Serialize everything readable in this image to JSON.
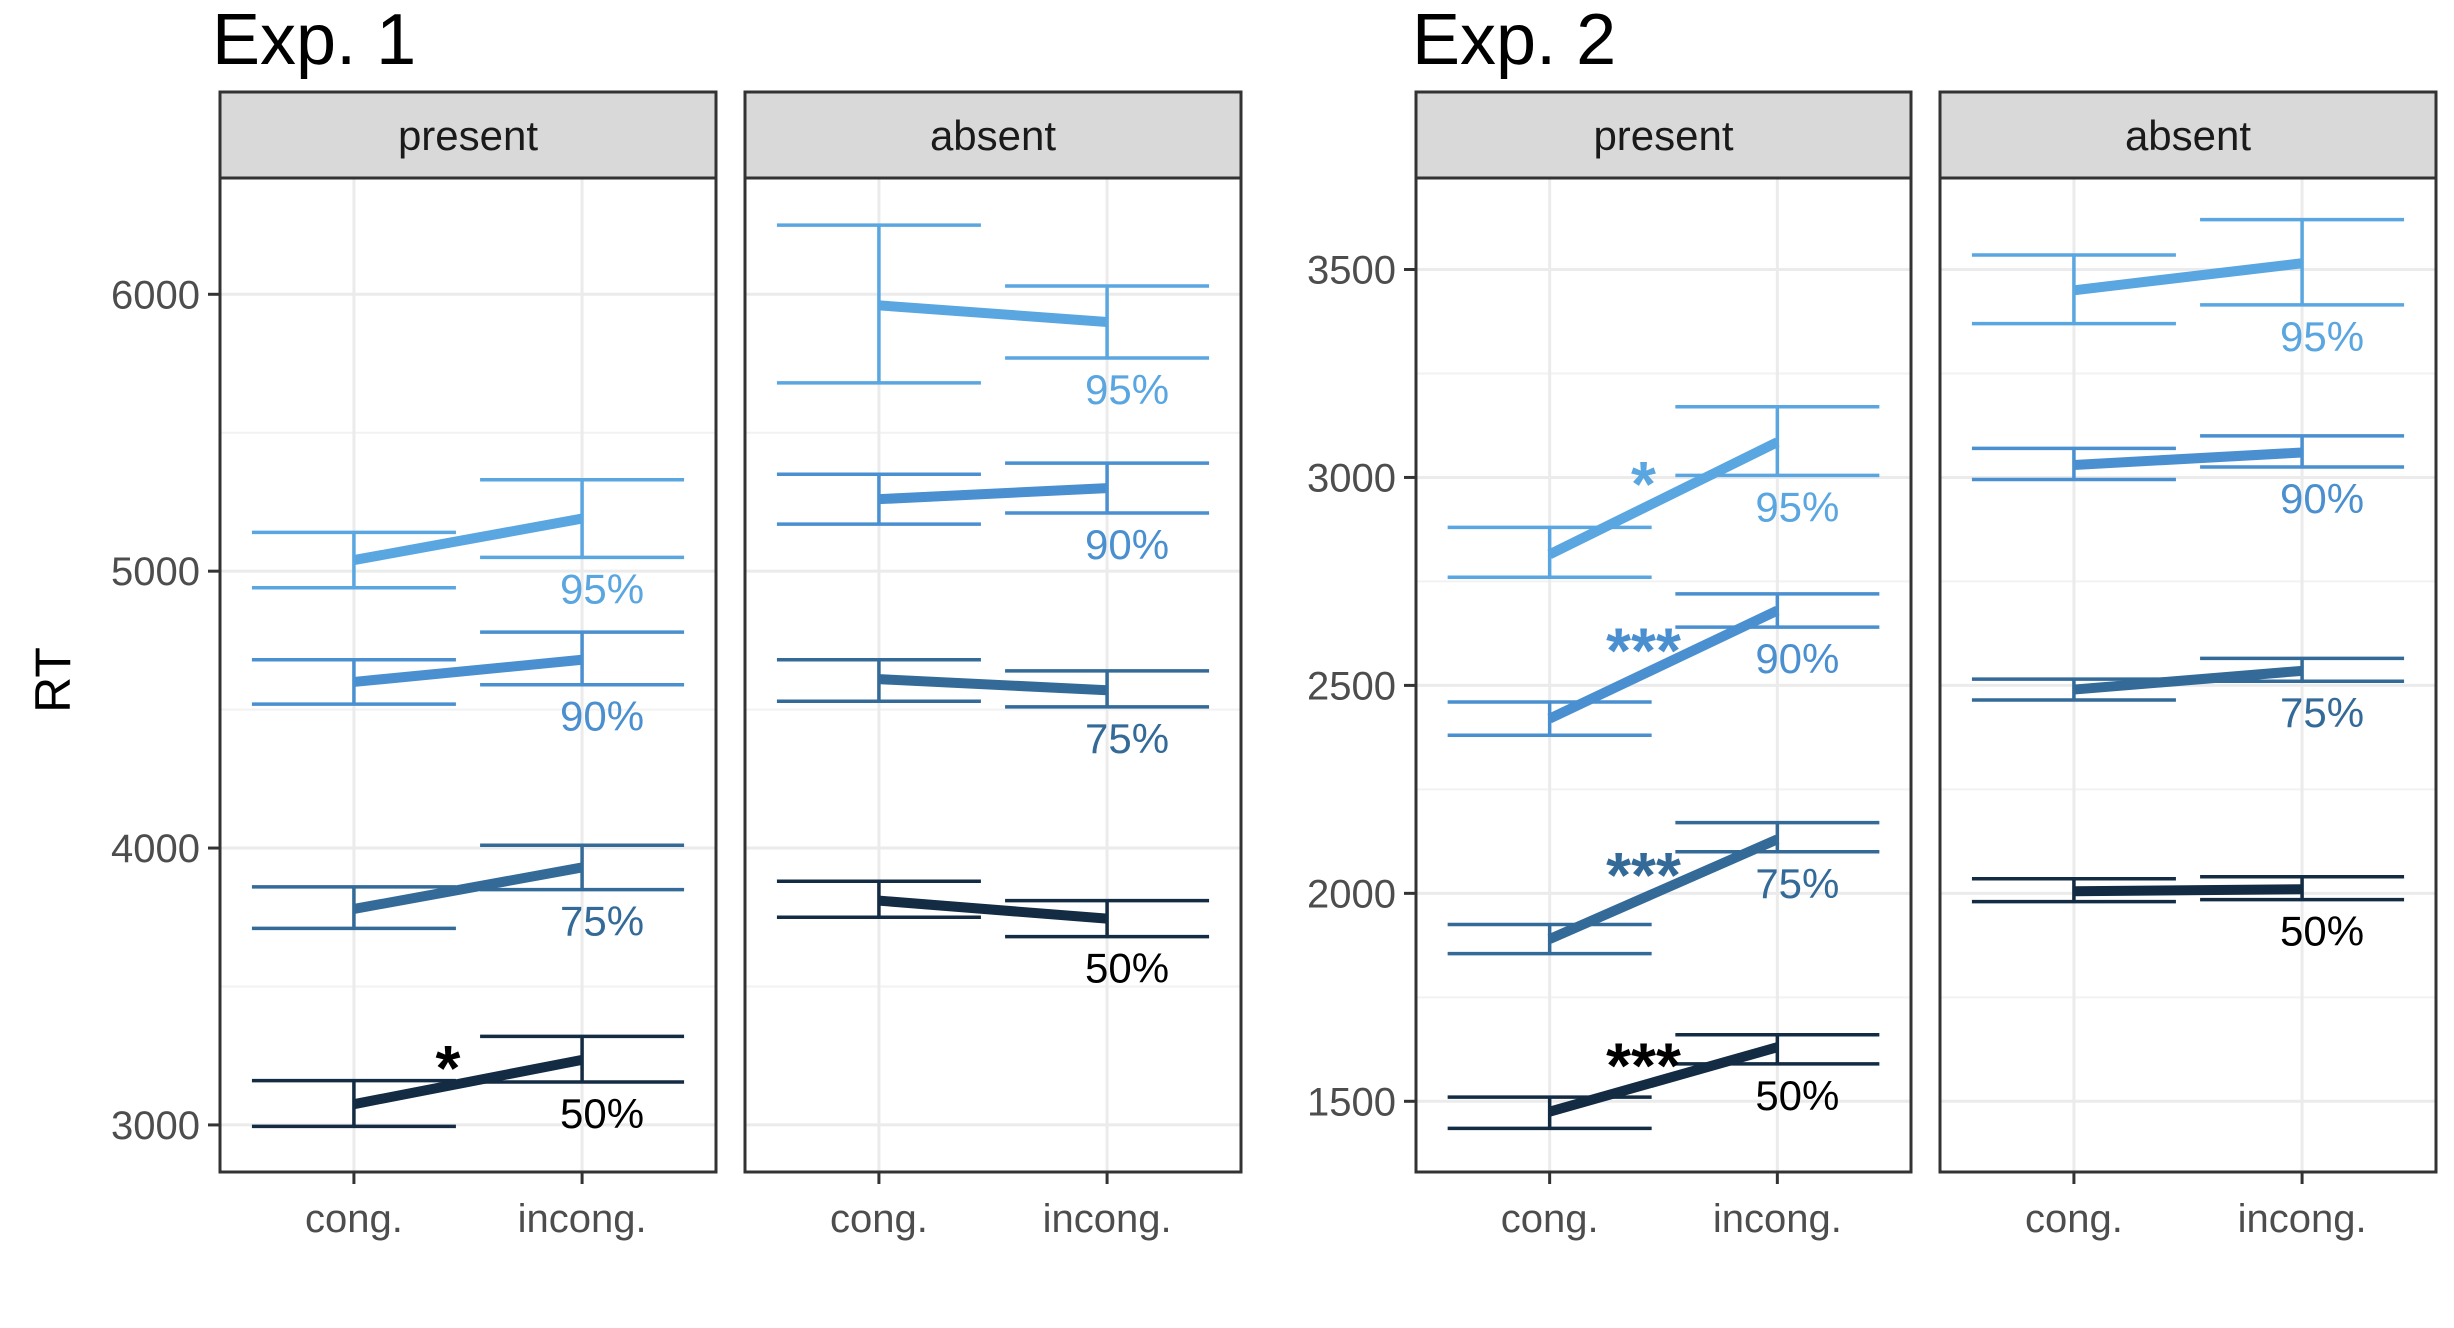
{
  "chart_data": {
    "type": "line",
    "ylabel": "RT",
    "categories": [
      "cong.",
      "incong."
    ],
    "colors": {
      "50%": "#132b43",
      "75%": "#336a98",
      "90%": "#4a8fcf",
      "95%": "#5aa6e0"
    },
    "experiments": [
      {
        "title": "Exp. 1",
        "ylim": [
          2830,
          6420
        ],
        "yticks": [
          3000,
          4000,
          5000,
          6000
        ],
        "panels": [
          {
            "name": "present",
            "series": [
              {
                "name": "95%",
                "values": [
                  5040,
                  5190
                ],
                "err_low": [
                  4940,
                  5050
                ],
                "err_high": [
                  5140,
                  5330
                ]
              },
              {
                "name": "90%",
                "values": [
                  4600,
                  4680
                ],
                "err_low": [
                  4520,
                  4590
                ],
                "err_high": [
                  4680,
                  4780
                ]
              },
              {
                "name": "75%",
                "values": [
                  3780,
                  3930
                ],
                "err_low": [
                  3710,
                  3850
                ],
                "err_high": [
                  3860,
                  4010
                ]
              },
              {
                "name": "50%",
                "values": [
                  3075,
                  3235
                ],
                "err_low": [
                  2995,
                  3155
                ],
                "err_high": [
                  3160,
                  3320
                ],
                "sig": "*"
              }
            ]
          },
          {
            "name": "absent",
            "series": [
              {
                "name": "95%",
                "values": [
                  5960,
                  5900
                ],
                "err_low": [
                  5680,
                  5770
                ],
                "err_high": [
                  6250,
                  6030
                ]
              },
              {
                "name": "90%",
                "values": [
                  5260,
                  5300
                ],
                "err_low": [
                  5170,
                  5210
                ],
                "err_high": [
                  5350,
                  5390
                ]
              },
              {
                "name": "75%",
                "values": [
                  4610,
                  4570
                ],
                "err_low": [
                  4530,
                  4510
                ],
                "err_high": [
                  4680,
                  4640
                ]
              },
              {
                "name": "50%",
                "values": [
                  3810,
                  3745
                ],
                "err_low": [
                  3750,
                  3680
                ],
                "err_high": [
                  3880,
                  3810
                ]
              }
            ]
          }
        ]
      },
      {
        "title": "Exp. 2",
        "ylim": [
          1330,
          3720
        ],
        "yticks": [
          1500,
          2000,
          2500,
          3000,
          3500
        ],
        "panels": [
          {
            "name": "present",
            "series": [
              {
                "name": "95%",
                "values": [
                  2815,
                  3085
                ],
                "err_low": [
                  2760,
                  3005
                ],
                "err_high": [
                  2880,
                  3170
                ],
                "sig": "*"
              },
              {
                "name": "90%",
                "values": [
                  2420,
                  2680
                ],
                "err_low": [
                  2380,
                  2640
                ],
                "err_high": [
                  2460,
                  2720
                ],
                "sig": "***"
              },
              {
                "name": "75%",
                "values": [
                  1890,
                  2130
                ],
                "err_low": [
                  1855,
                  2100
                ],
                "err_high": [
                  1925,
                  2170
                ],
                "sig": "***"
              },
              {
                "name": "50%",
                "values": [
                  1475,
                  1630
                ],
                "err_low": [
                  1435,
                  1590
                ],
                "err_high": [
                  1510,
                  1660
                ],
                "sig": "***"
              }
            ]
          },
          {
            "name": "absent",
            "series": [
              {
                "name": "95%",
                "values": [
                  3450,
                  3515
                ],
                "err_low": [
                  3370,
                  3415
                ],
                "err_high": [
                  3535,
                  3620
                ]
              },
              {
                "name": "90%",
                "values": [
                  3030,
                  3060
                ],
                "err_low": [
                  2995,
                  3025
                ],
                "err_high": [
                  3070,
                  3100
                ]
              },
              {
                "name": "75%",
                "values": [
                  2490,
                  2535
                ],
                "err_low": [
                  2465,
                  2510
                ],
                "err_high": [
                  2515,
                  2565
                ]
              },
              {
                "name": "50%",
                "values": [
                  2005,
                  2010
                ],
                "err_low": [
                  1980,
                  1985
                ],
                "err_high": [
                  2035,
                  2040
                ]
              }
            ]
          }
        ]
      }
    ]
  }
}
